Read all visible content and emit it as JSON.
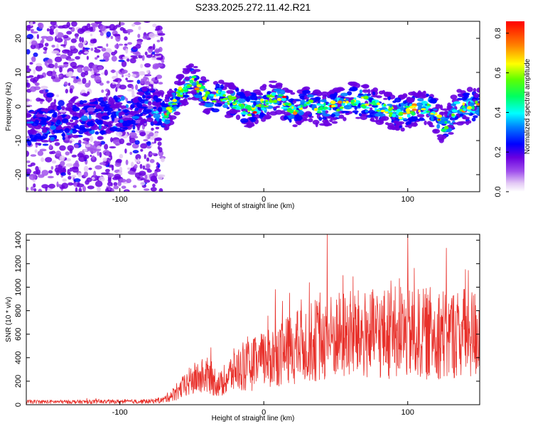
{
  "title": "S233.2025.272.11.42.R21",
  "colors": {
    "trace": "#e8302a",
    "frame": "#000000"
  },
  "chart_data": [
    {
      "type": "heatmap",
      "xlabel": "Height of straight line (km)",
      "ylabel": "Frequency (Hz)",
      "xlim": [
        -165,
        150
      ],
      "ylim": [
        -25,
        25
      ],
      "xticks": [
        -100,
        0,
        100
      ],
      "yticks": [
        -20,
        -10,
        0,
        10,
        20
      ],
      "colorbar": {
        "label": "Normalized spectral amplitude",
        "range": [
          0,
          0.86
        ],
        "ticks": [
          0.0,
          0.2,
          0.4,
          0.6,
          0.8
        ]
      },
      "ridge": [
        {
          "x": -165,
          "y": -6
        },
        {
          "x": -140,
          "y": -5
        },
        {
          "x": -120,
          "y": -3
        },
        {
          "x": -95,
          "y": -2
        },
        {
          "x": -80,
          "y": 1
        },
        {
          "x": -70,
          "y": -3
        },
        {
          "x": -60,
          "y": 3
        },
        {
          "x": -50,
          "y": 8
        },
        {
          "x": -40,
          "y": 3
        },
        {
          "x": -30,
          "y": 3
        },
        {
          "x": -20,
          "y": 1
        },
        {
          "x": -10,
          "y": -1
        },
        {
          "x": 0,
          "y": 1
        },
        {
          "x": 10,
          "y": 3
        },
        {
          "x": 20,
          "y": -1
        },
        {
          "x": 30,
          "y": 1
        },
        {
          "x": 40,
          "y": -1
        },
        {
          "x": 50,
          "y": 0
        },
        {
          "x": 60,
          "y": 2
        },
        {
          "x": 75,
          "y": 1
        },
        {
          "x": 85,
          "y": -1
        },
        {
          "x": 95,
          "y": -2
        },
        {
          "x": 105,
          "y": -1
        },
        {
          "x": 115,
          "y": 0
        },
        {
          "x": 125,
          "y": -6
        },
        {
          "x": 135,
          "y": 0
        },
        {
          "x": 150,
          "y": 0
        }
      ]
    },
    {
      "type": "line",
      "xlabel": "Height of straight line (km)",
      "ylabel": "SNR (10 * v/v)",
      "xlim": [
        -165,
        150
      ],
      "ylim": [
        0,
        1450
      ],
      "xticks": [
        -100,
        0,
        100
      ],
      "yticks": [
        0,
        200,
        400,
        600,
        800,
        1000,
        1200,
        1400
      ],
      "envelope": [
        {
          "x": -165,
          "y": 25
        },
        {
          "x": -120,
          "y": 25
        },
        {
          "x": -80,
          "y": 28
        },
        {
          "x": -70,
          "y": 40
        },
        {
          "x": -60,
          "y": 110
        },
        {
          "x": -50,
          "y": 210
        },
        {
          "x": -40,
          "y": 250
        },
        {
          "x": -30,
          "y": 170
        },
        {
          "x": -20,
          "y": 300
        },
        {
          "x": -10,
          "y": 330
        },
        {
          "x": 0,
          "y": 380
        },
        {
          "x": 10,
          "y": 430
        },
        {
          "x": 20,
          "y": 470
        },
        {
          "x": 30,
          "y": 530
        },
        {
          "x": 40,
          "y": 560
        },
        {
          "x": 50,
          "y": 580
        },
        {
          "x": 60,
          "y": 600
        },
        {
          "x": 70,
          "y": 590
        },
        {
          "x": 80,
          "y": 600
        },
        {
          "x": 90,
          "y": 610
        },
        {
          "x": 100,
          "y": 600
        },
        {
          "x": 110,
          "y": 600
        },
        {
          "x": 120,
          "y": 620
        },
        {
          "x": 130,
          "y": 600
        },
        {
          "x": 140,
          "y": 610
        },
        {
          "x": 150,
          "y": 600
        }
      ],
      "peaks": [
        {
          "x": 44,
          "y": 1450
        },
        {
          "x": 100,
          "y": 1450
        },
        {
          "x": 55,
          "y": 1100
        },
        {
          "x": 140,
          "y": 1150
        },
        {
          "x": 8,
          "y": 980
        },
        {
          "x": 18,
          "y": 950
        },
        {
          "x": 62,
          "y": 1090
        },
        {
          "x": 95,
          "y": 1000
        }
      ]
    }
  ]
}
